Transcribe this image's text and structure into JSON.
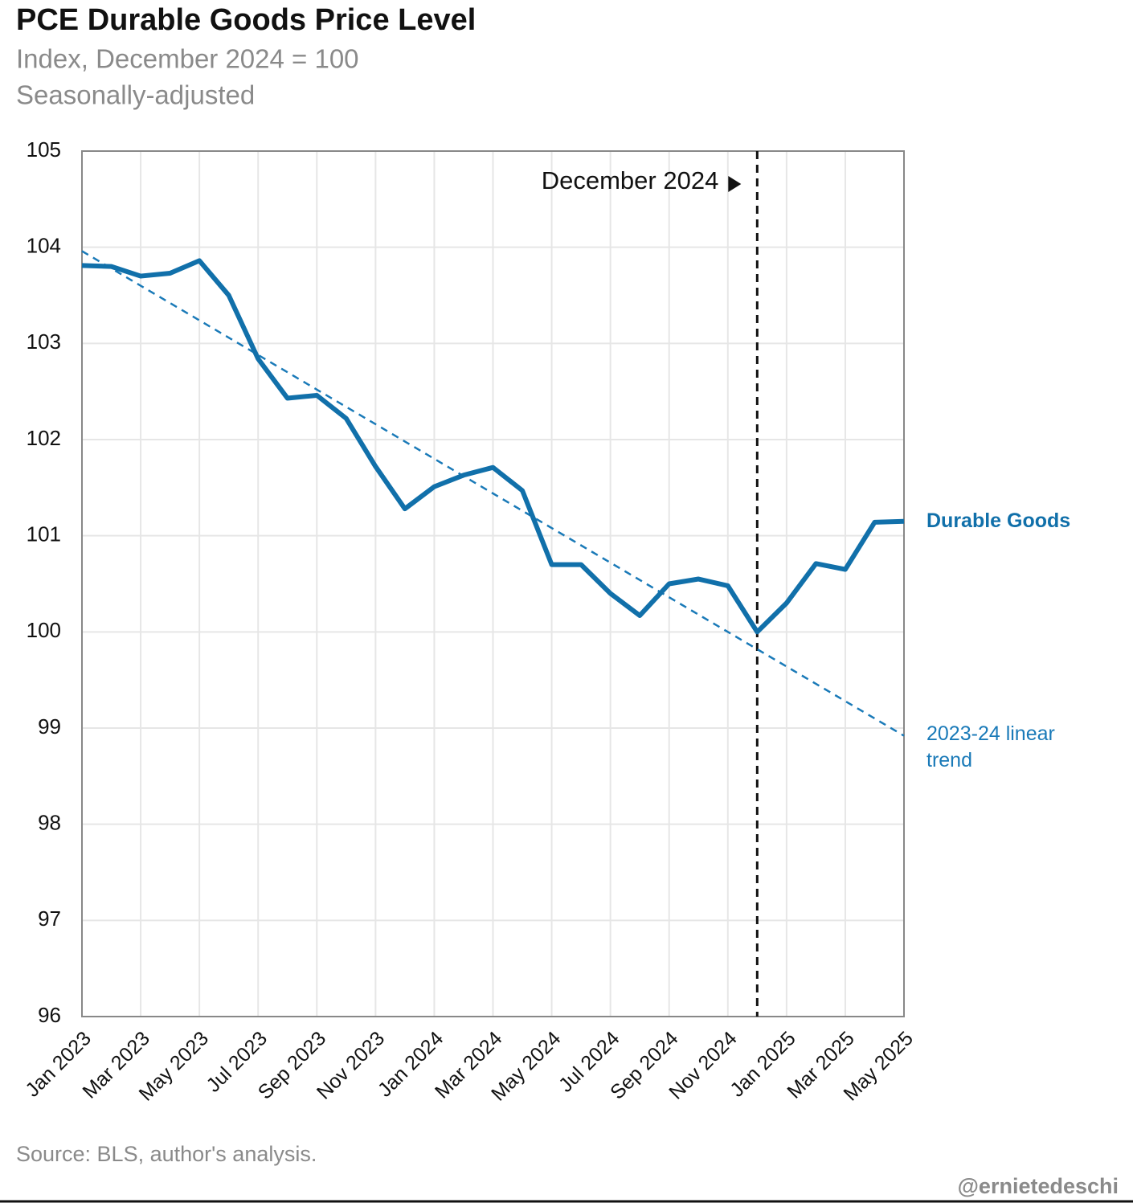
{
  "chart_data": {
    "type": "line",
    "title": "PCE Durable Goods Price Level",
    "subtitle": [
      "Index, December 2024 = 100",
      "Seasonally-adjusted"
    ],
    "categories": [
      "Jan 2023",
      null,
      "Mar 2023",
      null,
      "May 2023",
      null,
      "Jul 2023",
      null,
      "Sep 2023",
      null,
      "Nov 2023",
      null,
      "Jan 2024",
      null,
      "Mar 2024",
      null,
      "May 2024",
      null,
      "Jul 2024",
      null,
      "Sep 2024",
      null,
      "Nov 2024",
      null,
      "Jan 2025",
      null,
      "Mar 2025",
      null,
      "May 2025"
    ],
    "series": [
      {
        "name": "Durable Goods",
        "color": "#1170aa",
        "style": "solid",
        "values": [
          103.81,
          103.8,
          103.7,
          103.73,
          103.86,
          103.5,
          102.84,
          102.43,
          102.46,
          102.22,
          101.72,
          101.28,
          101.51,
          101.63,
          101.71,
          101.47,
          100.7,
          100.7,
          100.4,
          100.17,
          100.5,
          100.55,
          100.48,
          100.0,
          100.3,
          100.71,
          100.65,
          101.14,
          101.15
        ]
      },
      {
        "name": "2023-24 linear trend",
        "color": "#1a7ab8",
        "style": "dashed",
        "values": [
          103.96,
          103.78,
          103.6,
          103.42,
          103.24,
          103.06,
          102.88,
          102.7,
          102.52,
          102.34,
          102.16,
          101.98,
          101.8,
          101.62,
          101.44,
          101.26,
          101.08,
          100.9,
          100.72,
          100.54,
          100.36,
          100.18,
          100.0,
          99.82,
          99.64,
          99.46,
          99.28,
          99.1,
          98.92
        ]
      }
    ],
    "ylim": [
      96,
      105
    ],
    "yticks": [
      96,
      97,
      98,
      99,
      100,
      101,
      102,
      103,
      104,
      105
    ],
    "grid": true,
    "vline": {
      "label": "December 2024",
      "index": 23
    },
    "source": "Source: BLS, author's analysis.",
    "credit": "@ernietedeschi"
  }
}
